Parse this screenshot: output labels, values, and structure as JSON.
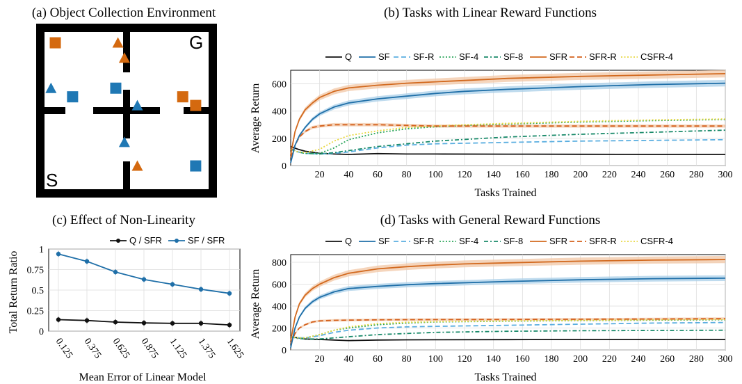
{
  "colors": {
    "Q": "#111111",
    "SF": "#1f6fa8",
    "SF-R": "#5aaee0",
    "SF-4": "#2aa55a",
    "SF-8": "#1a8a6a",
    "SFR": "#d2691e",
    "SFR-R": "#d4601c",
    "CSFR-4": "#e8d840",
    "band_blue": "#a9cfe8",
    "band_orange": "#f2c7a6",
    "env_orange": "#d4690f",
    "env_blue": "#1f78b4",
    "grid": "#dddddd"
  },
  "legend": [
    {
      "name": "Q",
      "dash": "solid"
    },
    {
      "name": "SF",
      "dash": "solid"
    },
    {
      "name": "SF-R",
      "dash": "dashed"
    },
    {
      "name": "SF-4",
      "dash": "dotted"
    },
    {
      "name": "SF-8",
      "dash": "dashdot"
    },
    {
      "name": "SFR",
      "dash": "solid"
    },
    {
      "name": "SFR-R",
      "dash": "dashed"
    },
    {
      "name": "CSFR-4",
      "dash": "dotted"
    }
  ],
  "panel_a": {
    "title": "(a) Object Collection Environment",
    "goal_label": "G",
    "start_label": "S",
    "objects": [
      {
        "shape": "square",
        "color": "orange",
        "col": 0.5,
        "row": 0.5
      },
      {
        "shape": "triangle",
        "color": "orange",
        "col": 3.4,
        "row": 0.5
      },
      {
        "shape": "triangle",
        "color": "orange",
        "col": 3.7,
        "row": 1.2
      },
      {
        "shape": "triangle",
        "color": "blue",
        "col": 0.3,
        "row": 2.6
      },
      {
        "shape": "square",
        "color": "blue",
        "col": 1.3,
        "row": 3.0
      },
      {
        "shape": "square",
        "color": "blue",
        "col": 3.3,
        "row": 2.6
      },
      {
        "shape": "triangle",
        "color": "blue",
        "col": 4.3,
        "row": 3.4
      },
      {
        "shape": "square",
        "color": "orange",
        "col": 6.4,
        "row": 3.0
      },
      {
        "shape": "square",
        "color": "orange",
        "col": 7.0,
        "row": 3.4
      },
      {
        "shape": "triangle",
        "color": "blue",
        "col": 3.7,
        "row": 5.1
      },
      {
        "shape": "triangle",
        "color": "orange",
        "col": 4.3,
        "row": 6.2
      },
      {
        "shape": "square",
        "color": "blue",
        "col": 7.0,
        "row": 6.2
      }
    ]
  },
  "chart_data": [
    {
      "id": "b",
      "type": "line",
      "title": "(b) Tasks with Linear Reward Functions",
      "xlabel": "Tasks Trained",
      "ylabel": "Average Return",
      "xlim": [
        0,
        300
      ],
      "ylim": [
        0,
        700
      ],
      "xticks": [
        20,
        40,
        60,
        80,
        100,
        120,
        140,
        160,
        180,
        200,
        220,
        240,
        260,
        280,
        300
      ],
      "yticks": [
        0,
        200,
        400,
        600
      ],
      "grid": true,
      "legend_placement": "top",
      "series": [
        {
          "name": "Q",
          "x": [
            0,
            5,
            10,
            20,
            30,
            40,
            60,
            80,
            100,
            150,
            200,
            250,
            300
          ],
          "y": [
            140,
            120,
            105,
            90,
            85,
            82,
            88,
            85,
            85,
            84,
            83,
            82,
            82
          ]
        },
        {
          "name": "SF",
          "band": true,
          "x": [
            0,
            3,
            6,
            10,
            15,
            20,
            30,
            40,
            60,
            80,
            100,
            120,
            150,
            200,
            250,
            300
          ],
          "y": [
            20,
            150,
            220,
            280,
            340,
            380,
            430,
            460,
            490,
            510,
            530,
            545,
            560,
            580,
            595,
            605
          ]
        },
        {
          "name": "SF-R",
          "x": [
            0,
            5,
            10,
            20,
            30,
            40,
            60,
            80,
            100,
            150,
            200,
            250,
            300
          ],
          "y": [
            120,
            100,
            90,
            85,
            90,
            100,
            130,
            150,
            160,
            170,
            180,
            185,
            190
          ]
        },
        {
          "name": "SF-4",
          "x": [
            0,
            5,
            10,
            20,
            30,
            40,
            60,
            80,
            100,
            120,
            150,
            200,
            250,
            300
          ],
          "y": [
            120,
            100,
            90,
            90,
            130,
            190,
            240,
            270,
            285,
            295,
            305,
            320,
            330,
            338
          ]
        },
        {
          "name": "SF-8",
          "x": [
            0,
            5,
            10,
            20,
            30,
            40,
            60,
            80,
            100,
            150,
            200,
            250,
            300
          ],
          "y": [
            120,
            100,
            90,
            85,
            95,
            110,
            140,
            160,
            180,
            210,
            230,
            245,
            260
          ]
        },
        {
          "name": "SFR",
          "band": true,
          "x": [
            0,
            3,
            6,
            10,
            15,
            20,
            30,
            40,
            60,
            80,
            100,
            120,
            150,
            200,
            250,
            300
          ],
          "y": [
            80,
            250,
            340,
            410,
            460,
            500,
            545,
            570,
            590,
            605,
            615,
            625,
            640,
            655,
            665,
            675
          ]
        },
        {
          "name": "SFR-R",
          "band": true,
          "x": [
            0,
            3,
            6,
            10,
            15,
            20,
            30,
            40,
            60,
            80,
            100,
            150,
            200,
            250,
            300
          ],
          "y": [
            60,
            150,
            210,
            250,
            280,
            290,
            300,
            300,
            300,
            295,
            290,
            290,
            290,
            290,
            290
          ]
        },
        {
          "name": "CSFR-4",
          "x": [
            0,
            5,
            10,
            20,
            30,
            40,
            60,
            80,
            100,
            120,
            150,
            200,
            250,
            300
          ],
          "y": [
            120,
            100,
            95,
            120,
            180,
            220,
            255,
            280,
            290,
            300,
            310,
            325,
            335,
            342
          ]
        }
      ]
    },
    {
      "id": "c",
      "type": "line",
      "title": "(c) Effect of Non-Linearity",
      "xlabel": "Mean Error of Linear Model",
      "ylabel": "Total Return Ratio",
      "categories": [
        "0.125",
        "0.375",
        "0.625",
        "0.875",
        "1.125",
        "1.375",
        "1.625"
      ],
      "ylim": [
        0,
        1
      ],
      "yticks": [
        0,
        0.25,
        0.5,
        0.75,
        1
      ],
      "ytick_labels": [
        "0",
        "0.25",
        "0.5",
        "0.75",
        "1"
      ],
      "grid": true,
      "legend_placement": "top-right",
      "series": [
        {
          "name": "Q / SFR",
          "color_key": "Q",
          "values": [
            0.14,
            0.13,
            0.11,
            0.1,
            0.095,
            0.095,
            0.075
          ]
        },
        {
          "name": "SF / SFR",
          "color_key": "SF",
          "values": [
            0.94,
            0.85,
            0.72,
            0.63,
            0.57,
            0.51,
            0.46
          ]
        }
      ]
    },
    {
      "id": "d",
      "type": "line",
      "title": "(d) Tasks with General Reward Functions",
      "xlabel": "Tasks Trained",
      "ylabel": "Average Return",
      "xlim": [
        0,
        300
      ],
      "ylim": [
        0,
        870
      ],
      "xticks": [
        20,
        40,
        60,
        80,
        100,
        120,
        140,
        160,
        180,
        200,
        220,
        240,
        260,
        280,
        300
      ],
      "yticks": [
        0,
        200,
        400,
        600,
        800
      ],
      "grid": true,
      "legend_placement": "top",
      "series": [
        {
          "name": "Q",
          "x": [
            0,
            5,
            10,
            20,
            30,
            40,
            60,
            80,
            100,
            150,
            200,
            250,
            300
          ],
          "y": [
            120,
            110,
            100,
            95,
            90,
            85,
            90,
            92,
            93,
            94,
            95,
            95,
            95
          ]
        },
        {
          "name": "SF",
          "band": true,
          "x": [
            0,
            3,
            6,
            10,
            15,
            20,
            30,
            40,
            60,
            80,
            100,
            150,
            200,
            250,
            300
          ],
          "y": [
            20,
            200,
            300,
            380,
            440,
            480,
            530,
            560,
            580,
            595,
            605,
            625,
            640,
            650,
            655
          ]
        },
        {
          "name": "SF-R",
          "x": [
            0,
            5,
            10,
            20,
            30,
            40,
            60,
            80,
            100,
            150,
            200,
            250,
            300
          ],
          "y": [
            120,
            110,
            110,
            130,
            160,
            180,
            200,
            210,
            215,
            225,
            235,
            245,
            250
          ]
        },
        {
          "name": "SF-4",
          "x": [
            0,
            5,
            10,
            20,
            30,
            40,
            60,
            80,
            100,
            150,
            200,
            250,
            300
          ],
          "y": [
            120,
            110,
            110,
            140,
            180,
            200,
            230,
            245,
            255,
            262,
            268,
            272,
            275
          ]
        },
        {
          "name": "SF-8",
          "x": [
            0,
            5,
            10,
            20,
            30,
            40,
            60,
            80,
            100,
            150,
            200,
            250,
            300
          ],
          "y": [
            120,
            105,
            100,
            100,
            110,
            120,
            140,
            150,
            160,
            170,
            175,
            178,
            180
          ]
        },
        {
          "name": "SFR",
          "band": true,
          "x": [
            0,
            3,
            6,
            10,
            15,
            20,
            30,
            40,
            60,
            80,
            100,
            120,
            150,
            200,
            250,
            300
          ],
          "y": [
            80,
            300,
            420,
            500,
            560,
            600,
            660,
            700,
            740,
            760,
            775,
            785,
            795,
            810,
            820,
            825
          ]
        },
        {
          "name": "SFR-R",
          "band": true,
          "x": [
            0,
            3,
            6,
            10,
            15,
            20,
            30,
            40,
            60,
            80,
            100,
            150,
            200,
            250,
            300
          ],
          "y": [
            60,
            150,
            200,
            230,
            255,
            265,
            270,
            272,
            275,
            276,
            277,
            278,
            280,
            282,
            285
          ]
        },
        {
          "name": "CSFR-4",
          "x": [
            0,
            5,
            10,
            20,
            30,
            40,
            60,
            80,
            100,
            150,
            200,
            250,
            300
          ],
          "y": [
            120,
            110,
            110,
            140,
            180,
            210,
            240,
            252,
            258,
            265,
            270,
            275,
            278
          ]
        }
      ]
    }
  ]
}
